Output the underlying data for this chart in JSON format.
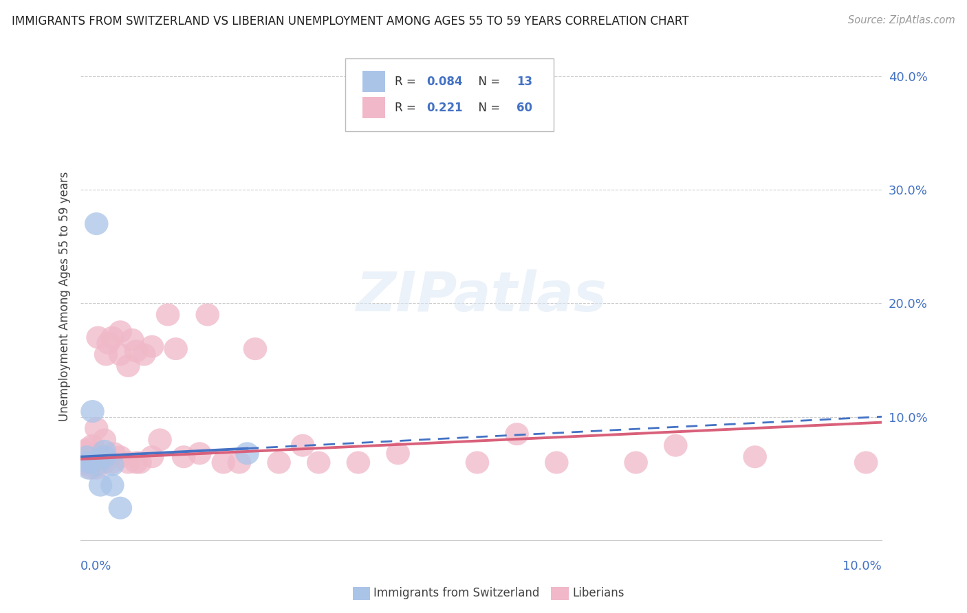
{
  "title": "IMMIGRANTS FROM SWITZERLAND VS LIBERIAN UNEMPLOYMENT AMONG AGES 55 TO 59 YEARS CORRELATION CHART",
  "source": "Source: ZipAtlas.com",
  "ylabel": "Unemployment Among Ages 55 to 59 years",
  "blue_color": "#aac4e8",
  "pink_color": "#f0b8c8",
  "blue_line_color": "#4472c4",
  "pink_line_color": "#d9607a",
  "swiss_x": [
    0.0008,
    0.001,
    0.001,
    0.0015,
    0.002,
    0.002,
    0.0025,
    0.003,
    0.003,
    0.004,
    0.004,
    0.005,
    0.021
  ],
  "swiss_y": [
    0.065,
    0.06,
    0.055,
    0.105,
    0.27,
    0.058,
    0.04,
    0.065,
    0.07,
    0.058,
    0.04,
    0.02,
    0.068
  ],
  "lib_x": [
    0.0004,
    0.0005,
    0.0006,
    0.0007,
    0.0008,
    0.0009,
    0.001,
    0.001,
    0.0012,
    0.0013,
    0.0015,
    0.0015,
    0.0018,
    0.002,
    0.002,
    0.002,
    0.002,
    0.0022,
    0.0025,
    0.003,
    0.003,
    0.003,
    0.0032,
    0.0035,
    0.004,
    0.004,
    0.0042,
    0.005,
    0.005,
    0.005,
    0.006,
    0.006,
    0.0065,
    0.007,
    0.007,
    0.0075,
    0.008,
    0.009,
    0.009,
    0.01,
    0.011,
    0.012,
    0.013,
    0.015,
    0.016,
    0.018,
    0.02,
    0.022,
    0.025,
    0.028,
    0.03,
    0.035,
    0.04,
    0.05,
    0.055,
    0.06,
    0.07,
    0.075,
    0.085,
    0.099
  ],
  "lib_y": [
    0.068,
    0.062,
    0.07,
    0.058,
    0.065,
    0.072,
    0.06,
    0.068,
    0.062,
    0.055,
    0.075,
    0.065,
    0.06,
    0.068,
    0.09,
    0.062,
    0.055,
    0.17,
    0.065,
    0.08,
    0.06,
    0.065,
    0.155,
    0.165,
    0.06,
    0.17,
    0.068,
    0.065,
    0.155,
    0.175,
    0.06,
    0.145,
    0.168,
    0.158,
    0.06,
    0.06,
    0.155,
    0.162,
    0.065,
    0.08,
    0.19,
    0.16,
    0.065,
    0.068,
    0.19,
    0.06,
    0.06,
    0.16,
    0.06,
    0.075,
    0.06,
    0.06,
    0.068,
    0.06,
    0.085,
    0.06,
    0.06,
    0.075,
    0.065,
    0.06
  ],
  "swiss_line_x0": 0.0,
  "swiss_line_x_solid_end": 0.021,
  "swiss_line_x1": 0.101,
  "lib_line_x0": 0.0,
  "lib_line_x1": 0.101,
  "xlim": [
    0.0,
    0.101
  ],
  "ylim": [
    -0.008,
    0.42
  ],
  "ytick_vals": [
    0.0,
    0.1,
    0.2,
    0.3,
    0.4
  ],
  "ytick_labels": [
    "",
    "10.0%",
    "20.0%",
    "30.0%",
    "40.0%"
  ]
}
